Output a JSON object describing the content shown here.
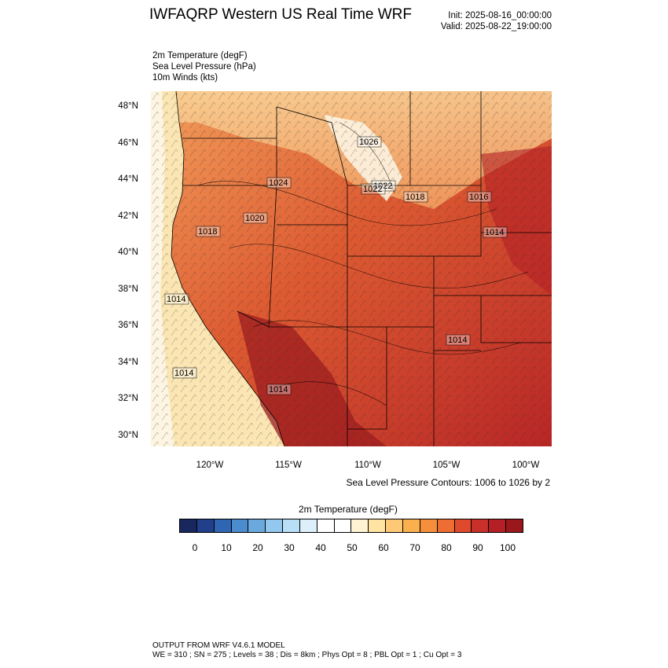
{
  "header": {
    "title": "IWFAQRP Western US Real Time WRF",
    "init": "Init: 2025-08-16_00:00:00",
    "valid": "Valid: 2025-08-22_19:00:00"
  },
  "fields": [
    "2m Temperature   (degF)",
    "Sea Level Pressure   (hPa)",
    "10m Winds   (kts)"
  ],
  "map": {
    "lat_labels": [
      "48°N",
      "46°N",
      "44°N",
      "42°N",
      "40°N",
      "38°N",
      "36°N",
      "34°N",
      "32°N",
      "30°N"
    ],
    "lon_labels": [
      "120°W",
      "115°W",
      "110°W",
      "105°W",
      "100°W"
    ],
    "pressure_labels": [
      "1026",
      "1022",
      "1022",
      "1018",
      "1016",
      "1014",
      "1014",
      "1014",
      "1014",
      "1024",
      "1020",
      "1018",
      "1014"
    ],
    "contour_note": "Sea Level Pressure Contours: 1006 to 1026 by 2",
    "colors": {
      "ocean": "#fbe6b3",
      "coast_cool": "#fdd08a",
      "north": "#f8b36a",
      "interior": "#d9542f",
      "hot": "#bd2b27",
      "hottest": "#9c1c1f"
    }
  },
  "colorbar": {
    "title": "2m Temperature  (degF)",
    "ticks": [
      "0",
      "10",
      "20",
      "30",
      "40",
      "50",
      "60",
      "70",
      "80",
      "90",
      "100"
    ],
    "colors": [
      "#19275f",
      "#213f8a",
      "#2f66b3",
      "#4a8cce",
      "#6aa9de",
      "#92c8ee",
      "#b8dff6",
      "#dceffb",
      "#ffffff",
      "#ffffff",
      "#fff3d2",
      "#fee3a2",
      "#fdc977",
      "#fbb04e",
      "#f68f3c",
      "#ee6d32",
      "#e04a2c",
      "#c9302a",
      "#b42025",
      "#9a171c"
    ]
  },
  "footer": {
    "line1": "OUTPUT FROM WRF V4.6.1 MODEL",
    "line2": "WE = 310 ; SN = 275 ; Levels = 38 ; Dis = 8km ; Phys Opt = 8 ; PBL Opt = 1 ; Cu Opt = 3"
  }
}
